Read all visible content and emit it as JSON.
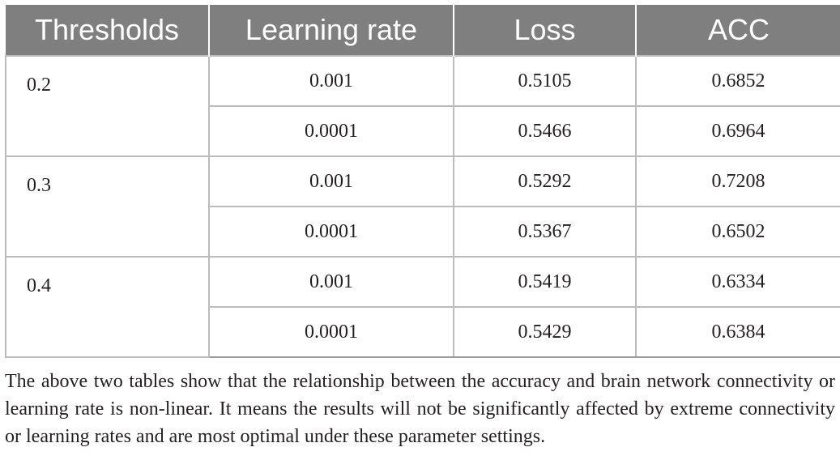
{
  "table": {
    "headers": [
      "Thresholds",
      "Learning rate",
      "Loss",
      "ACC"
    ],
    "groups": [
      {
        "threshold": "0.2",
        "rows": [
          {
            "learning_rate": "0.001",
            "loss": "0.5105",
            "acc": "0.6852"
          },
          {
            "learning_rate": "0.0001",
            "loss": "0.5466",
            "acc": "0.6964"
          }
        ]
      },
      {
        "threshold": "0.3",
        "rows": [
          {
            "learning_rate": "0.001",
            "loss": "0.5292",
            "acc": "0.7208"
          },
          {
            "learning_rate": "0.0001",
            "loss": "0.5367",
            "acc": "0.6502"
          }
        ]
      },
      {
        "threshold": "0.4",
        "rows": [
          {
            "learning_rate": "0.001",
            "loss": "0.5419",
            "acc": "0.6334"
          },
          {
            "learning_rate": "0.0001",
            "loss": "0.5429",
            "acc": "0.6384"
          }
        ]
      }
    ]
  },
  "note": "The above two tables show that the relationship between the accuracy and brain network connectivity or learning rate is non-linear. It means the results will not be significantly affected by extreme connectivity or learning rates and are most optimal under these parameter settings."
}
